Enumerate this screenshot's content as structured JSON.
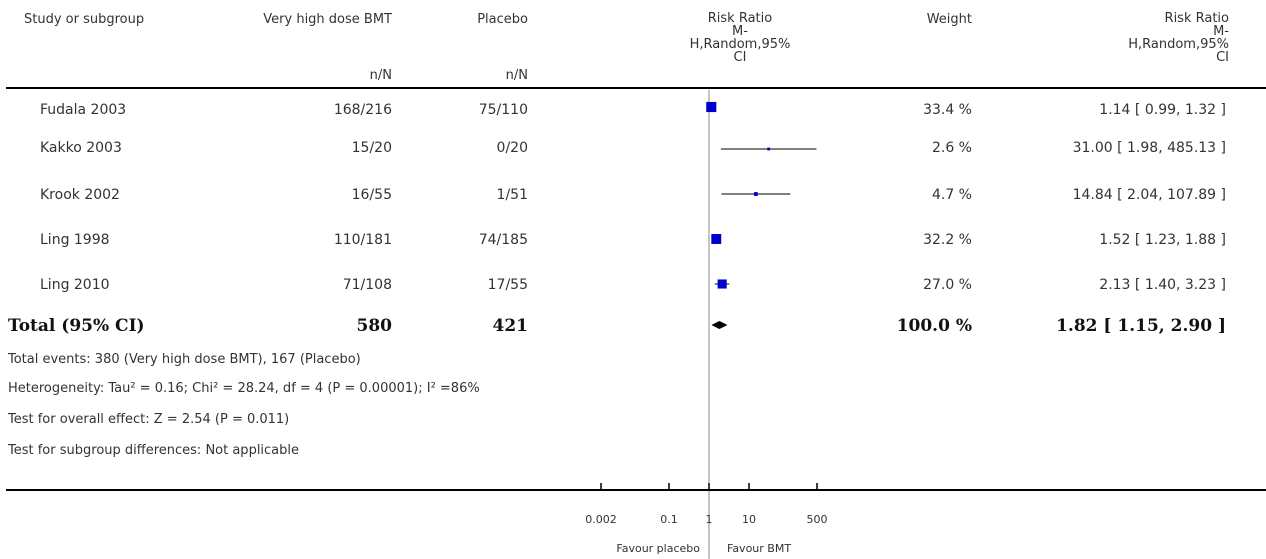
{
  "headers": {
    "study": "Study or subgroup",
    "treatment": "Very high dose BMT",
    "treatment_sub": "n/N",
    "control": "Placebo",
    "control_sub": "n/N",
    "plot_l1": "Risk Ratio",
    "plot_l2": "M-",
    "plot_l3": "H,Random,95%",
    "plot_l4": "CI",
    "weight": "Weight",
    "rr_l1": "Risk Ratio",
    "rr_l2": "M-",
    "rr_l3": "H,Random,95%",
    "rr_l4": "CI"
  },
  "rows": [
    {
      "study": "Fudala 2003",
      "treatment": "168/216",
      "control": "75/110",
      "weight": "33.4 %",
      "rr": "1.14 [ 0.99, 1.32 ]"
    },
    {
      "study": "Kakko 2003",
      "treatment": "15/20",
      "control": "0/20",
      "weight": "2.6 %",
      "rr": "31.00 [ 1.98, 485.13 ]"
    },
    {
      "study": "Krook 2002",
      "treatment": "16/55",
      "control": "1/51",
      "weight": "4.7 %",
      "rr": "14.84 [ 2.04, 107.89 ]"
    },
    {
      "study": "Ling 1998",
      "treatment": "110/181",
      "control": "74/185",
      "weight": "32.2 %",
      "rr": "1.52 [ 1.23, 1.88 ]"
    },
    {
      "study": "Ling 2010",
      "treatment": "71/108",
      "control": "17/55",
      "weight": "27.0 %",
      "rr": "2.13 [ 1.40, 3.23 ]"
    }
  ],
  "total": {
    "label": "Total (95% CI)",
    "treatment": "580",
    "control": "421",
    "weight": "100.0 %",
    "rr": "1.82 [ 1.15, 2.90 ]"
  },
  "notes": {
    "events": "Total events: 380 (Very high dose BMT), 167 (Placebo)",
    "heterogeneity": "Heterogeneity: Tau² = 0.16; Chi² = 28.24, df = 4 (P = 0.00001); I² =86%",
    "overall": "Test for overall effect: Z = 2.54 (P = 0.011)",
    "subgroup": "Test for subgroup differences: Not applicable"
  },
  "axis_labels": {
    "left": "Favour placebo",
    "right": "Favour BMT"
  },
  "chart_data": {
    "type": "forest",
    "scale": "log",
    "xlim": [
      0.002,
      500
    ],
    "ticks": [
      {
        "value": 0.002,
        "label": "0.002"
      },
      {
        "value": 0.1,
        "label": "0.1"
      },
      {
        "value": 1,
        "label": "1"
      },
      {
        "value": 10,
        "label": "10"
      },
      {
        "value": 500,
        "label": "500"
      }
    ],
    "studies": [
      {
        "rr": 1.14,
        "lo": 0.99,
        "hi": 1.32,
        "weight": 33.4
      },
      {
        "rr": 31.0,
        "lo": 1.98,
        "hi": 485.13,
        "weight": 2.6
      },
      {
        "rr": 14.84,
        "lo": 2.04,
        "hi": 107.89,
        "weight": 4.7
      },
      {
        "rr": 1.52,
        "lo": 1.23,
        "hi": 1.88,
        "weight": 32.2
      },
      {
        "rr": 2.13,
        "lo": 1.4,
        "hi": 3.23,
        "weight": 27.0
      }
    ],
    "pooled": {
      "rr": 1.82,
      "lo": 1.15,
      "hi": 2.9
    },
    "marker_color": "#0000cc"
  }
}
